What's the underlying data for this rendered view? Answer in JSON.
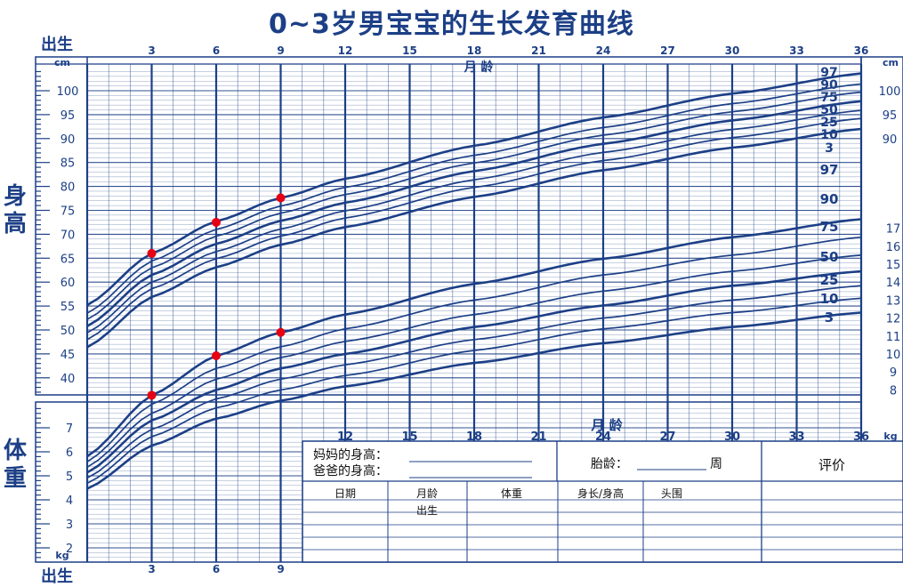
{
  "page": {
    "title": "0~3岁男宝宝的生长发育曲线",
    "height_label": "身高",
    "weight_label": "体重",
    "birth_label": "出生"
  },
  "chart_data": {
    "type": "line",
    "title": "0~3岁男宝宝的生长发育曲线",
    "x": {
      "label": "月 龄",
      "range": [
        0,
        36
      ],
      "top_ticks": [
        "3",
        "6",
        "9",
        "12",
        "15",
        "18",
        "21",
        "24",
        "27",
        "30",
        "33",
        "36"
      ],
      "mid_ticks": [
        "12",
        "15",
        "18",
        "21",
        "24",
        "27",
        "30",
        "33",
        "36"
      ],
      "bottom_ticks": [
        "3",
        "6",
        "9"
      ],
      "grid": true
    },
    "height": {
      "label": "身高",
      "unit": "cm",
      "range": [
        35,
        105
      ],
      "left_ticks": [
        "100",
        "95",
        "90",
        "85",
        "80",
        "75",
        "70",
        "65",
        "60",
        "55",
        "50",
        "45",
        "40"
      ],
      "right_unit": "cm",
      "right_ticks_visible": [
        "100",
        "95",
        "90"
      ],
      "series": [
        {
          "name": "97",
          "x": [
            0,
            3,
            6,
            9,
            12,
            18,
            24,
            30,
            36
          ],
          "values": [
            55.2,
            66,
            72.7,
            77.6,
            81.6,
            88.5,
            94.4,
            99.4,
            103.6
          ]
        },
        {
          "name": "90",
          "x": [
            0,
            3,
            6,
            9,
            12,
            18,
            24,
            30,
            36
          ],
          "values": [
            53.5,
            64.4,
            71,
            75.9,
            79.8,
            86.5,
            92.3,
            97.3,
            101.4
          ]
        },
        {
          "name": "75",
          "x": [
            0,
            3,
            6,
            9,
            12,
            18,
            24,
            30,
            36
          ],
          "values": [
            52.2,
            63,
            69.6,
            74.4,
            78.3,
            84.9,
            90.7,
            95.6,
            99.7
          ]
        },
        {
          "name": "50",
          "x": [
            0,
            3,
            6,
            9,
            12,
            18,
            24,
            30,
            36
          ],
          "values": [
            50.8,
            61.5,
            68,
            72.8,
            76.6,
            83.2,
            88.9,
            93.8,
            97.8
          ]
        },
        {
          "name": "25",
          "x": [
            0,
            3,
            6,
            9,
            12,
            18,
            24,
            30,
            36
          ],
          "values": [
            49.4,
            60,
            66.4,
            71.1,
            74.9,
            81.4,
            87.1,
            91.9,
            95.9
          ]
        },
        {
          "name": "10",
          "x": [
            0,
            3,
            6,
            9,
            12,
            18,
            24,
            30,
            36
          ],
          "values": [
            48,
            58.6,
            64.9,
            69.6,
            73.4,
            79.8,
            85.4,
            90.2,
            94.2
          ]
        },
        {
          "name": "3",
          "x": [
            0,
            3,
            6,
            9,
            12,
            18,
            24,
            30,
            36
          ],
          "values": [
            46.4,
            56.9,
            63.1,
            67.8,
            71.5,
            77.8,
            83.4,
            88.1,
            92
          ]
        }
      ],
      "points": [
        {
          "x": 3,
          "y": 66
        },
        {
          "x": 6,
          "y": 72.5
        },
        {
          "x": 9,
          "y": 77.6
        }
      ]
    },
    "weight": {
      "label": "体重",
      "unit": "kg",
      "range": [
        1.6,
        19.6
      ],
      "left_ticks": [
        "7",
        "6",
        "5",
        "4",
        "3",
        "2"
      ],
      "right_ticks_visible": [
        "17",
        "16",
        "15",
        "14",
        "13",
        "12",
        "11",
        "10",
        "9",
        "8"
      ],
      "right_unit": "kg",
      "series": [
        {
          "name": "97",
          "x": [
            0,
            3,
            6,
            9,
            12,
            18,
            24,
            30,
            36
          ],
          "values": [
            4.3,
            7.7,
            9.9,
            11.2,
            12.2,
            13.9,
            15.3,
            16.5,
            17.5
          ]
        },
        {
          "name": "90",
          "x": [
            0,
            3,
            6,
            9,
            12,
            18,
            24,
            30,
            36
          ],
          "values": [
            4,
            7.2,
            9.2,
            10.4,
            11.4,
            13,
            14.4,
            15.5,
            16.5
          ]
        },
        {
          "name": "75",
          "x": [
            0,
            3,
            6,
            9,
            12,
            18,
            24,
            30,
            36
          ],
          "values": [
            3.7,
            6.7,
            8.6,
            9.8,
            10.7,
            12.2,
            13.5,
            14.6,
            15.5
          ]
        },
        {
          "name": "50",
          "x": [
            0,
            3,
            6,
            9,
            12,
            18,
            24,
            30,
            36
          ],
          "values": [
            3.4,
            6.3,
            8,
            9.2,
            10,
            11.5,
            12.7,
            13.8,
            14.6
          ]
        },
        {
          "name": "25",
          "x": [
            0,
            3,
            6,
            9,
            12,
            18,
            24,
            30,
            36
          ],
          "values": [
            3.1,
            5.8,
            7.5,
            8.6,
            9.4,
            10.8,
            12,
            13,
            13.8
          ]
        },
        {
          "name": "10",
          "x": [
            0,
            3,
            6,
            9,
            12,
            18,
            24,
            30,
            36
          ],
          "values": [
            2.8,
            5.4,
            7,
            8,
            8.8,
            10.2,
            11.4,
            12.3,
            13.1
          ]
        },
        {
          "name": "3",
          "x": [
            0,
            3,
            6,
            9,
            12,
            18,
            24,
            30,
            36
          ],
          "values": [
            2.5,
            4.9,
            6.4,
            7.4,
            8.2,
            9.5,
            10.6,
            11.5,
            12.3
          ]
        }
      ],
      "points": [
        {
          "x": 3,
          "y": 7.7
        },
        {
          "x": 6,
          "y": 9.9
        },
        {
          "x": 9,
          "y": 11.2
        }
      ]
    },
    "point_color": "#e60012",
    "line_color": "#1c3f86",
    "grid_color": "#1c3f86"
  },
  "record_table": {
    "mother_height_label": "妈妈的身高：",
    "father_height_label": "爸爸的身高：",
    "gestation_label": "胎龄：",
    "weeks_label": "周",
    "evaluation_header": "评价",
    "columns": [
      "日期",
      "月龄",
      "体重",
      "身长/身高",
      "头围"
    ],
    "first_row_month": "出生",
    "row_count": 5
  }
}
